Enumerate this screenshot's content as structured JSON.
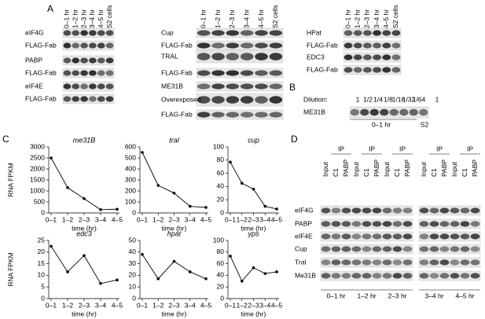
{
  "A": {
    "label": "A",
    "lanes": [
      "0–1 hr",
      "1–2 hr",
      "2–3 hr",
      "3–4 hr",
      "4–5 hr",
      "S2 cells"
    ],
    "columns": [
      [
        "eIF4G",
        "FLAG-Fab",
        "PABP",
        "FLAG-Fab",
        "eIF4E",
        "FLAG-Fab"
      ],
      [
        "Cup",
        "FLAG-Fab",
        "TRAL",
        "FLAG-Fab",
        "ME31B",
        "Overexposed",
        "FLAG-Fab"
      ],
      [
        "HPat",
        "FLAG-Fab",
        "EDC3",
        "FLAG-Fab"
      ]
    ]
  },
  "B": {
    "label": "B",
    "dilution_label": "Dilution:",
    "dilutions": [
      "1",
      "1/2",
      "1/4",
      "1/8",
      "1/16",
      "1/32",
      "1/64",
      "1"
    ],
    "row": "ME31B",
    "groups": [
      "0–1 hr",
      "S2"
    ]
  },
  "C": {
    "label": "C"
  },
  "chart_data": [
    {
      "type": "line",
      "title": "me31B",
      "y_label": "RNA FPKM",
      "x_label": "time (hr)",
      "categories": [
        "0–1",
        "1–2",
        "2–3",
        "3–4",
        "4–5"
      ],
      "values": [
        2500,
        1150,
        650,
        150,
        170
      ],
      "ylim": [
        0,
        3000
      ],
      "yticks": [
        0,
        500,
        1000,
        1500,
        2000,
        2500,
        3000
      ],
      "color": "#000000"
    },
    {
      "type": "line",
      "title": "tral",
      "x_label": "time (hr)",
      "categories": [
        "0–1",
        "1–2",
        "2–3",
        "3–4",
        "4–5"
      ],
      "values": [
        550,
        250,
        180,
        60,
        50
      ],
      "ylim": [
        0,
        600
      ],
      "yticks": [
        0,
        100,
        200,
        300,
        400,
        500,
        600
      ],
      "color": "#000000"
    },
    {
      "type": "line",
      "title": "cup",
      "x_label": "time (hr)",
      "categories": [
        "0–1",
        "1–2",
        "2–3",
        "3–4",
        "4–5"
      ],
      "values": [
        77,
        45,
        36,
        10,
        6
      ],
      "ylim": [
        0,
        100
      ],
      "yticks": [
        0,
        20,
        40,
        60,
        80,
        100
      ],
      "color": "#000000"
    },
    {
      "type": "line",
      "title": "edc3",
      "y_label": "RNA FPKM",
      "x_label": "time (hr)",
      "categories": [
        "0–1",
        "1–2",
        "2–3",
        "3–4",
        "4–5"
      ],
      "values": [
        22.5,
        11.5,
        18.5,
        6.5,
        8
      ],
      "ylim": [
        0,
        25
      ],
      "yticks": [
        0,
        5,
        10,
        15,
        20,
        25
      ],
      "color": "#000000"
    },
    {
      "type": "line",
      "title": "hpat",
      "x_label": "time (hr)",
      "categories": [
        "0–1",
        "1–2",
        "2–3",
        "3–4",
        "4–5"
      ],
      "values": [
        38,
        17,
        32,
        23,
        17
      ],
      "ylim": [
        0,
        50
      ],
      "yticks": [
        0,
        10,
        20,
        30,
        40,
        50
      ],
      "color": "#000000"
    },
    {
      "type": "line",
      "title": "yps",
      "x_label": "time (hr)",
      "categories": [
        "0–1",
        "1–2",
        "2–3",
        "3–4",
        "4–5"
      ],
      "values": [
        73,
        30,
        53,
        43,
        46
      ],
      "ylim": [
        0,
        100
      ],
      "yticks": [
        0,
        20,
        40,
        60,
        80,
        100
      ],
      "color": "#000000"
    }
  ],
  "D": {
    "label": "D",
    "ip_label": "IP",
    "lanes": [
      "Input",
      "C1",
      "PABP"
    ],
    "times": [
      "0–1 hr",
      "1–2 hr",
      "2–3 hr",
      "3–4 hr",
      "4–5 hr"
    ],
    "rows": [
      "eIF4G",
      "PABP",
      "eIF4E",
      "Cup",
      "Tral",
      "Me31B"
    ]
  }
}
